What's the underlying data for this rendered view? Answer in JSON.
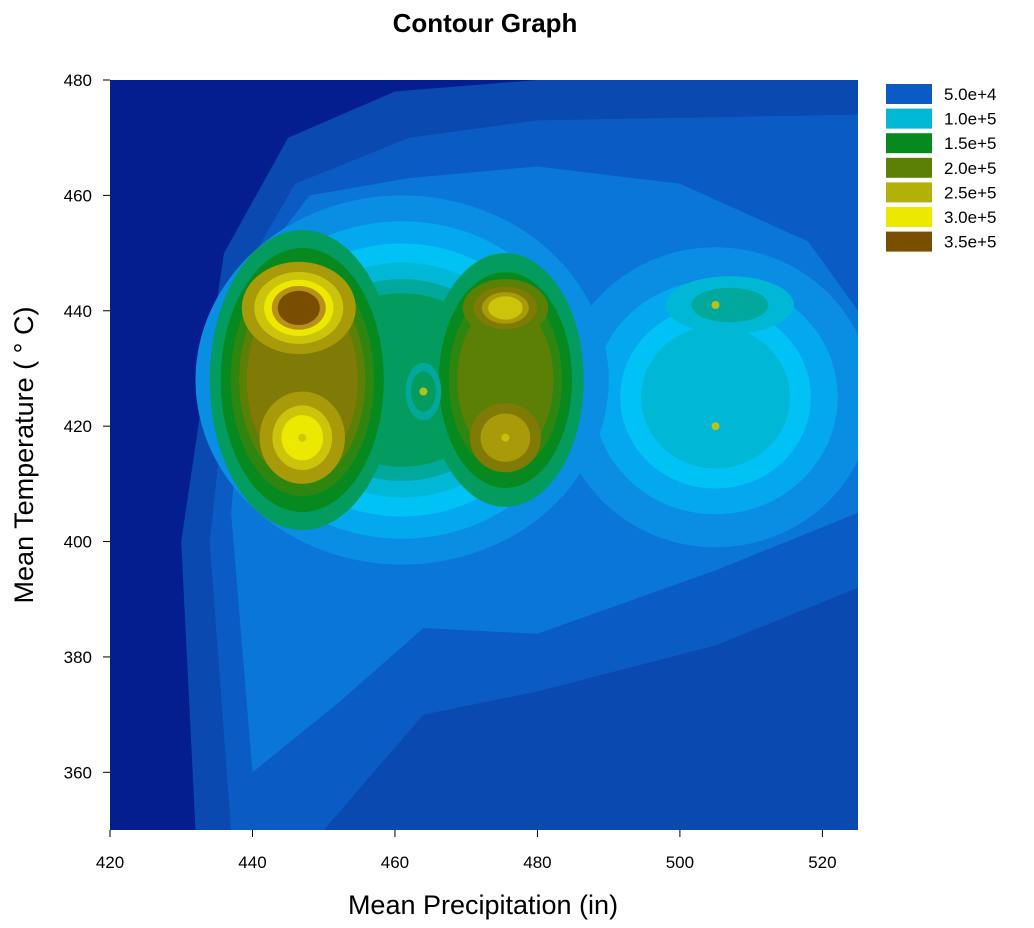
{
  "chart_data": {
    "type": "contour",
    "title": "Contour Graph",
    "xlabel": "Mean Precipitation (in)",
    "ylabel": "Mean Temperature ( ° C)",
    "xlim": [
      420,
      525
    ],
    "ylim": [
      350,
      480
    ],
    "xticks": [
      420,
      440,
      460,
      480,
      500,
      520
    ],
    "yticks": [
      360,
      380,
      400,
      420,
      440,
      460,
      480
    ],
    "legend": {
      "position": "right",
      "entries": [
        {
          "label": "5.0e+4",
          "value": 50000,
          "color": "#0a5cc4"
        },
        {
          "label": "1.0e+5",
          "value": 100000,
          "color": "#00b8d6"
        },
        {
          "label": "1.5e+5",
          "value": 150000,
          "color": "#06891e"
        },
        {
          "label": "2.0e+5",
          "value": 200000,
          "color": "#5c8006"
        },
        {
          "label": "2.5e+5",
          "value": 250000,
          "color": "#b4b00a"
        },
        {
          "label": "3.0e+5",
          "value": 300000,
          "color": "#ece800"
        },
        {
          "label": "3.5e+5",
          "value": 350000,
          "color": "#7a4e00"
        }
      ]
    },
    "peaks": [
      {
        "x": 446.5,
        "y": 440.5,
        "z": 370000
      },
      {
        "x": 447,
        "y": 418,
        "z": 290000
      },
      {
        "x": 475.5,
        "y": 440.5,
        "z": 290000
      },
      {
        "x": 475.5,
        "y": 418,
        "z": 230000
      },
      {
        "x": 464,
        "y": 426,
        "z": 150000
      },
      {
        "x": 505,
        "y": 441,
        "z": 120000
      },
      {
        "x": 505,
        "y": 420,
        "z": 100000
      }
    ],
    "grid": false
  }
}
